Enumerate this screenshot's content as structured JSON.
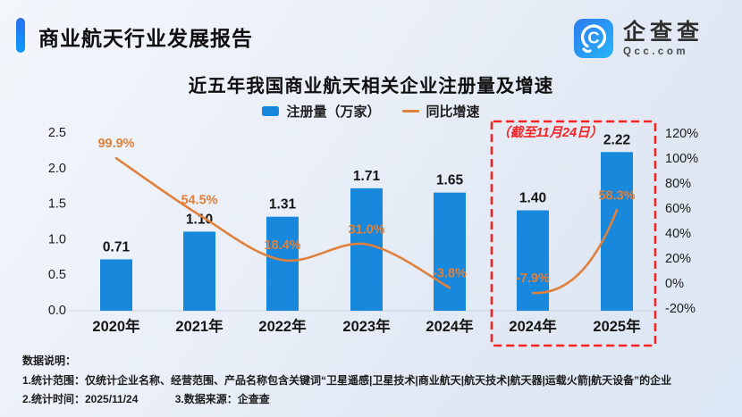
{
  "header": {
    "title": "商业航天行业发展报告"
  },
  "logo": {
    "name": "企查查",
    "domain": "Qcc.com"
  },
  "theme": {
    "bar_blue": "#1788db",
    "line_orange": "#e0803c",
    "highlight_red": "#f32323",
    "brand_blue_start": "#2e7bf0",
    "brand_blue_end": "#27b4f7",
    "axis_line": "#c9d2de",
    "label_dark": "#151515"
  },
  "chart_data": {
    "type": "bar",
    "title": "近五年我国商业航天相关企业注册量及增速",
    "legend": [
      {
        "label": "注册量（万家）",
        "marker": "bar",
        "color": "#1788db"
      },
      {
        "label": "同比增速",
        "marker": "line",
        "color": "#e0803c"
      }
    ],
    "categories": [
      "2020年",
      "2021年",
      "2022年",
      "2023年",
      "2024年",
      "2024年",
      "2025年"
    ],
    "series": [
      {
        "name": "注册量（万家）",
        "type": "bar",
        "values": [
          0.71,
          1.1,
          1.31,
          1.71,
          1.65,
          1.4,
          2.22
        ],
        "labels": [
          "0.71",
          "1.10",
          "1.31",
          "1.71",
          "1.65",
          "1.40",
          "2.22"
        ]
      },
      {
        "name": "同比增速",
        "type": "line",
        "values": [
          99.9,
          54.5,
          18.4,
          31.0,
          -3.8,
          -7.9,
          58.3
        ],
        "labels": [
          "99.9%",
          "54.5%",
          "18.4%",
          "31.0%",
          "-3.8%",
          "-7.9%",
          "58.3%"
        ],
        "segments": [
          [
            0,
            4
          ],
          [
            5,
            6
          ]
        ]
      }
    ],
    "left_axis": {
      "ticks": [
        "0.0",
        "0.5",
        "1.0",
        "1.5",
        "2.0",
        "2.5"
      ],
      "min": 0,
      "max": 2.5
    },
    "right_axis": {
      "ticks": [
        "-20%",
        "0%",
        "20%",
        "40%",
        "60%",
        "80%",
        "100%",
        "120%"
      ],
      "min": -20,
      "max": 120
    },
    "grid": false,
    "legend_position": "top",
    "annotation": {
      "text": "（截至11月24日）",
      "box_start_index": 5,
      "box_end_index": 6
    }
  },
  "footer": {
    "heading": "数据说明：",
    "line1": "1.统计范围：仅统计企业名称、经营范围、产品名称包含关键词“卫星遥感|卫星技术|商业航天|航天技术|航天器|运载火箭|航天设备”的企业",
    "line2": "2.统计时间：2025/11/24",
    "line3": "3.数据来源：企查查"
  }
}
